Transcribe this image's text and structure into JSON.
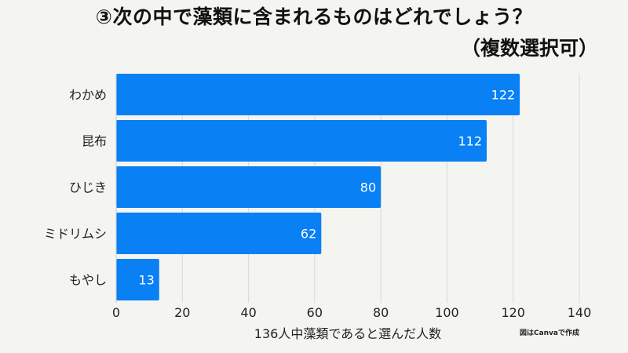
{
  "chart_data": {
    "type": "bar",
    "orientation": "horizontal",
    "title": "③次の中で藻類に含まれるものはどれでしょう？",
    "subtitle": "（複数選択可）",
    "categories": [
      "わかめ",
      "昆布",
      "ひじき",
      "ミドリムシ",
      "もやし"
    ],
    "values": [
      122,
      112,
      80,
      62,
      13
    ],
    "xlabel": "136人中藻類であると選んだ人数",
    "ylabel": "",
    "xlim": [
      0,
      140
    ],
    "xticks": [
      "0",
      "20",
      "40",
      "60",
      "80",
      "100",
      "120",
      "140"
    ],
    "grid": true,
    "bar_color": "#0a80f5",
    "gridline_color": "#d9d9d9",
    "credit": "図はCanvaで作成"
  }
}
